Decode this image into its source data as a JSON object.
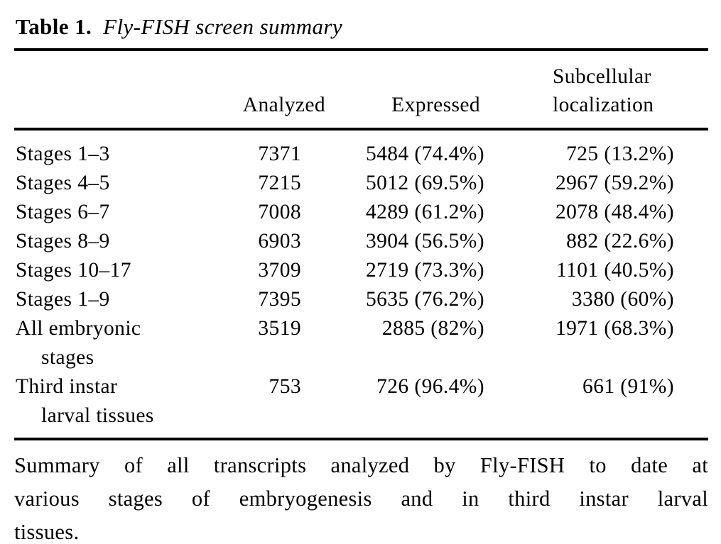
{
  "colors": {
    "background": "#ffffff",
    "text": "#000000",
    "rule": "#000000"
  },
  "title": {
    "label": "Table 1.",
    "text": "Fly-FISH screen summary"
  },
  "table": {
    "headers": {
      "stage": "",
      "analyzed": "Analyzed",
      "expressed": "Expressed",
      "localization": "Subcellular localization"
    },
    "rows": [
      {
        "stage": "Stages 1–3",
        "analyzed": "7371",
        "expressed": "5484 (74.4%)",
        "localization": "725 (13.2%)"
      },
      {
        "stage": "Stages 4–5",
        "analyzed": "7215",
        "expressed": "5012 (69.5%)",
        "localization": "2967 (59.2%)"
      },
      {
        "stage": "Stages 6–7",
        "analyzed": "7008",
        "expressed": "4289 (61.2%)",
        "localization": "2078 (48.4%)"
      },
      {
        "stage": "Stages 8–9",
        "analyzed": "6903",
        "expressed": "3904 (56.5%)",
        "localization": "882 (22.6%)"
      },
      {
        "stage": "Stages 10–17",
        "analyzed": "3709",
        "expressed": "2719 (73.3%)",
        "localization": "1101 (40.5%)"
      },
      {
        "stage": "Stages 1–9",
        "analyzed": "7395",
        "expressed": "5635 (76.2%)",
        "localization": "3380 (60%)"
      },
      {
        "stage": "All embryonic",
        "stage_line2": "stages",
        "analyzed": "3519",
        "expressed": "2885 (82%)",
        "localization": "1971 (68.3%)"
      },
      {
        "stage": "Third instar",
        "stage_line2": "larval tissues",
        "analyzed": "753",
        "expressed": "726 (96.4%)",
        "localization": "661 (91%)"
      }
    ]
  },
  "caption": {
    "lines": [
      "Summary of all transcripts analyzed by Fly-FISH to date at",
      "various stages of embryogenesis and in third instar larval",
      "tissues."
    ]
  }
}
